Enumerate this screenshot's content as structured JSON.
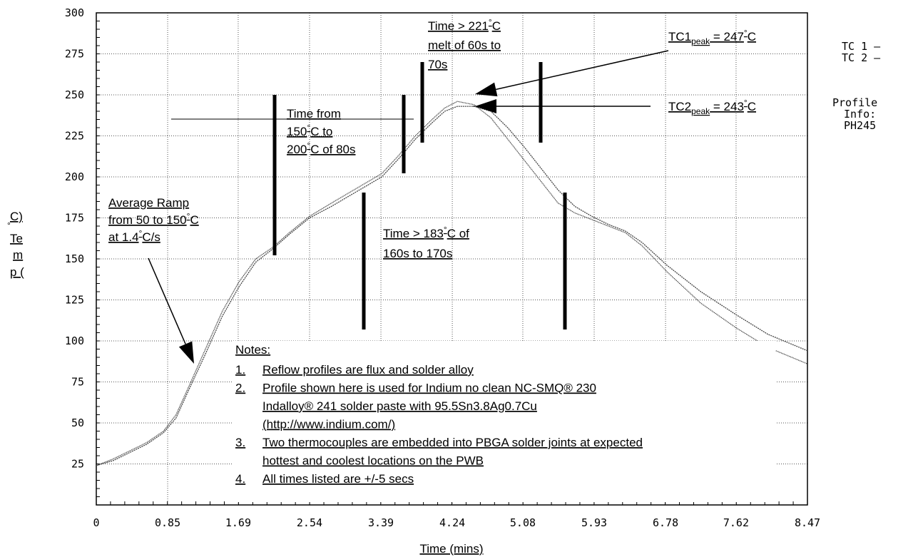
{
  "chart_data": {
    "type": "line",
    "title": "",
    "xlabel": "Time (mins)",
    "ylabel": "Temp (°C)",
    "xlim": [
      0,
      8.47
    ],
    "ylim": [
      0,
      300
    ],
    "x_ticks": [
      "0",
      "0.85",
      "1.69",
      "2.54",
      "3.39",
      "4.24",
      "5.08",
      "5.93",
      "6.78",
      "7.62",
      "8.47"
    ],
    "y_ticks": [
      "25",
      "50",
      "75",
      "100",
      "125",
      "150",
      "175",
      "200",
      "225",
      "250",
      "275",
      "300"
    ],
    "grid": true,
    "legend": {
      "position": "right",
      "entries": [
        "TC 1 —",
        "TC 2 —"
      ]
    },
    "profile_info": [
      "Profile",
      "Info:",
      "PH245"
    ],
    "series": [
      {
        "name": "TC 1",
        "x": [
          0,
          0.2,
          0.4,
          0.6,
          0.8,
          0.95,
          1.1,
          1.3,
          1.5,
          1.7,
          1.9,
          2.1,
          2.3,
          2.54,
          2.8,
          3.0,
          3.2,
          3.4,
          3.6,
          3.8,
          4.0,
          4.15,
          4.3,
          4.5,
          4.7,
          4.9,
          5.1,
          5.3,
          5.5,
          5.7,
          5.9,
          6.1,
          6.3,
          6.5,
          6.8,
          7.2,
          7.62,
          8.0,
          8.47
        ],
        "y": [
          24,
          28,
          33,
          38,
          45,
          55,
          72,
          95,
          118,
          136,
          150,
          157,
          166,
          176,
          184,
          190,
          196,
          202,
          213,
          225,
          235,
          242,
          246,
          244,
          236,
          223,
          210,
          197,
          184,
          178,
          174,
          170,
          166,
          158,
          142,
          123,
          108,
          96,
          86
        ]
      },
      {
        "name": "TC 2",
        "x": [
          0,
          0.2,
          0.4,
          0.6,
          0.8,
          0.95,
          1.1,
          1.3,
          1.5,
          1.7,
          1.9,
          2.1,
          2.3,
          2.54,
          2.8,
          3.0,
          3.2,
          3.4,
          3.6,
          3.8,
          4.0,
          4.15,
          4.3,
          4.5,
          4.7,
          4.9,
          5.1,
          5.3,
          5.5,
          5.7,
          5.9,
          6.1,
          6.3,
          6.5,
          6.8,
          7.2,
          7.62,
          8.0,
          8.47
        ],
        "y": [
          24,
          27,
          32,
          37,
          44,
          53,
          70,
          92,
          115,
          133,
          148,
          156,
          165,
          175,
          182,
          188,
          194,
          200,
          211,
          223,
          233,
          240,
          243,
          243,
          240,
          230,
          218,
          205,
          192,
          182,
          176,
          171,
          167,
          160,
          146,
          130,
          116,
          104,
          94
        ]
      }
    ],
    "annotations": {
      "tc1_peak": {
        "base": "TC1",
        "sub": "peak",
        "rest": " = 247°C"
      },
      "tc2_peak": {
        "base": "TC2",
        "sub": "peak",
        "rest": " = 243°C"
      },
      "ramp": [
        "Average Ramp",
        "from 50 to 150°C",
        "at 1.4°C/s"
      ],
      "time_150_200": [
        "Time from",
        "150°C to",
        "200°C of 80s"
      ],
      "time_183": [
        "Time > 183°C of",
        "160s to 170s"
      ],
      "time_221": [
        "Time > 221°C",
        "melt of 60s to",
        "70s"
      ]
    },
    "notes_title": "Notes:",
    "notes": [
      {
        "num": "1.",
        "lines": [
          "Reflow profiles are flux and solder alloy"
        ]
      },
      {
        "num": "2.",
        "lines": [
          "Profile shown here is used for Indium no clean NC-SMQ® 230",
          "Indalloy® 241 solder paste with 95.5Sn3.8Ag0.7Cu",
          "(http://www.indium.com/)"
        ]
      },
      {
        "num": "3.",
        "lines": [
          "Two thermocouples are embedded into PBGA solder joints at expected",
          "hottest and coolest locations on the PWB"
        ]
      },
      {
        "num": "4.",
        "lines": [
          "All times listed are +/-5 secs"
        ]
      }
    ]
  }
}
